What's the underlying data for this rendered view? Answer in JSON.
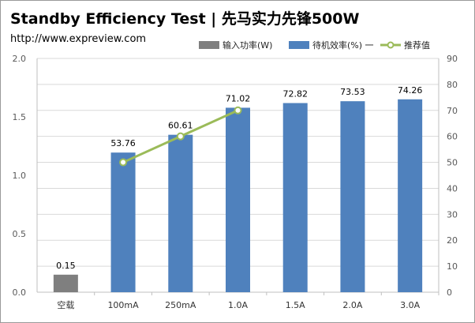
{
  "title": "Standby Efficiency Test | 先马实力先锋500W",
  "subtitle": "http://www.expreview.com",
  "legend": [
    {
      "label": "输入功率(W)",
      "color": "#7f7f7f",
      "kind": "bar"
    },
    {
      "label": "待机效率(%) 一",
      "color": "#4f81bd",
      "kind": "bar"
    },
    {
      "label": "推荐值",
      "color": "#9bbb59",
      "kind": "line"
    }
  ],
  "chart_data": {
    "type": "bar",
    "categories": [
      "空载",
      "100mA",
      "250mA",
      "1.0A",
      "1.5A",
      "2.0A",
      "3.0A"
    ],
    "series": [
      {
        "name": "输入功率(W)",
        "axis": "left",
        "color": "#7f7f7f",
        "values": [
          0.15,
          null,
          null,
          null,
          null,
          null,
          null
        ],
        "labels": [
          "0.15",
          "",
          "",
          "",
          "",
          "",
          ""
        ]
      },
      {
        "name": "待机效率(%) 一",
        "axis": "right",
        "color": "#4f81bd",
        "values": [
          null,
          53.76,
          60.61,
          71.02,
          72.82,
          73.53,
          74.26
        ],
        "labels": [
          "",
          "53.76",
          "60.61",
          "71.02",
          "72.82",
          "73.53",
          "74.26"
        ]
      },
      {
        "name": "推荐值",
        "type": "line",
        "axis": "right",
        "color": "#9bbb59",
        "values": [
          null,
          50,
          60,
          70,
          null,
          null,
          null
        ]
      }
    ],
    "y_left": {
      "min": 0,
      "max": 2,
      "ticks": [
        "0.0",
        "0.5",
        "1.0",
        "1.5",
        "2.0"
      ]
    },
    "y_right": {
      "min": 0,
      "max": 90,
      "ticks": [
        "0",
        "10",
        "20",
        "30",
        "40",
        "50",
        "60",
        "70",
        "80",
        "90"
      ]
    },
    "grid": true,
    "legend_position": "top"
  }
}
